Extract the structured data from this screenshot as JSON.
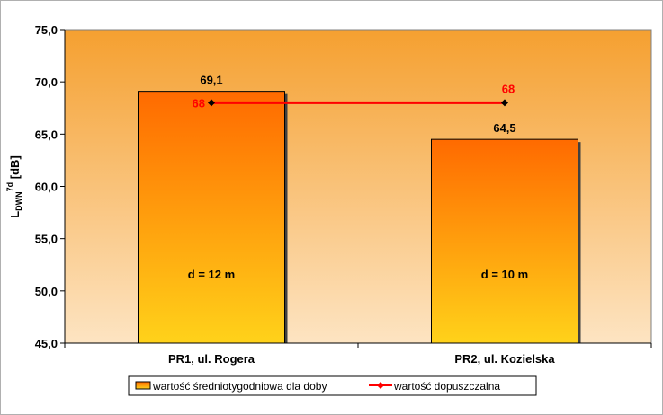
{
  "chart_data": {
    "type": "bar",
    "categories": [
      "PR1, ul. Rogera",
      "PR2, ul. Kozielska"
    ],
    "series": [
      {
        "name": "wartość średniotygodniowa dla doby",
        "type": "bar",
        "values": [
          69.1,
          64.5
        ],
        "value_labels": [
          "69,1",
          "64,5"
        ]
      },
      {
        "name": "wartość dopuszczalna",
        "type": "line",
        "values": [
          68,
          68
        ],
        "value_labels": [
          "68",
          "68"
        ],
        "color": "#ff0000"
      }
    ],
    "bar_annotations": [
      "d = 12 m",
      "d = 10 m"
    ],
    "ylabel": {
      "main": "L",
      "sub": "DWN",
      "sup": "7d",
      "unit": " [dB]"
    },
    "ylim": [
      45,
      75
    ],
    "yticks": [
      "45,0",
      "50,0",
      "55,0",
      "60,0",
      "65,0",
      "70,0",
      "75,0"
    ],
    "legend_position": "bottom",
    "grid": false,
    "colors": {
      "bar_top": "#ff6a00",
      "bar_bottom": "#ffd21a",
      "plot_top": "#f5a030",
      "plot_bottom": "#fde4c2",
      "line": "#ff0000"
    }
  }
}
